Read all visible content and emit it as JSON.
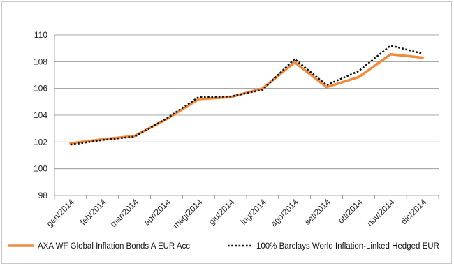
{
  "chart_data": {
    "type": "line",
    "categories": [
      "gen/2014",
      "feb/2014",
      "mar/2014",
      "apr/2014",
      "mag/2014",
      "giu/2014",
      "lug/2014",
      "ago/2014",
      "set/2014",
      "ott/2014",
      "nov/2014",
      "dic/2014"
    ],
    "ylim": [
      98,
      110
    ],
    "yticks": [
      98,
      100,
      102,
      104,
      106,
      108,
      110
    ],
    "grid": true,
    "legend_position": "bottom",
    "series": [
      {
        "name": "AXA WF Global Inflation Bonds A EUR Acc",
        "color": "#f08a3c",
        "style": "solid",
        "values": [
          101.9,
          102.2,
          102.45,
          103.7,
          105.2,
          105.35,
          106.0,
          107.95,
          106.1,
          106.85,
          108.55,
          108.3
        ]
      },
      {
        "name": "100% Barclays World Inflation-Linked Hedged EUR",
        "color": "#111111",
        "style": "dotted",
        "values": [
          101.8,
          102.15,
          102.4,
          103.75,
          105.35,
          105.4,
          105.9,
          108.2,
          106.25,
          107.3,
          109.2,
          108.6
        ]
      }
    ]
  }
}
